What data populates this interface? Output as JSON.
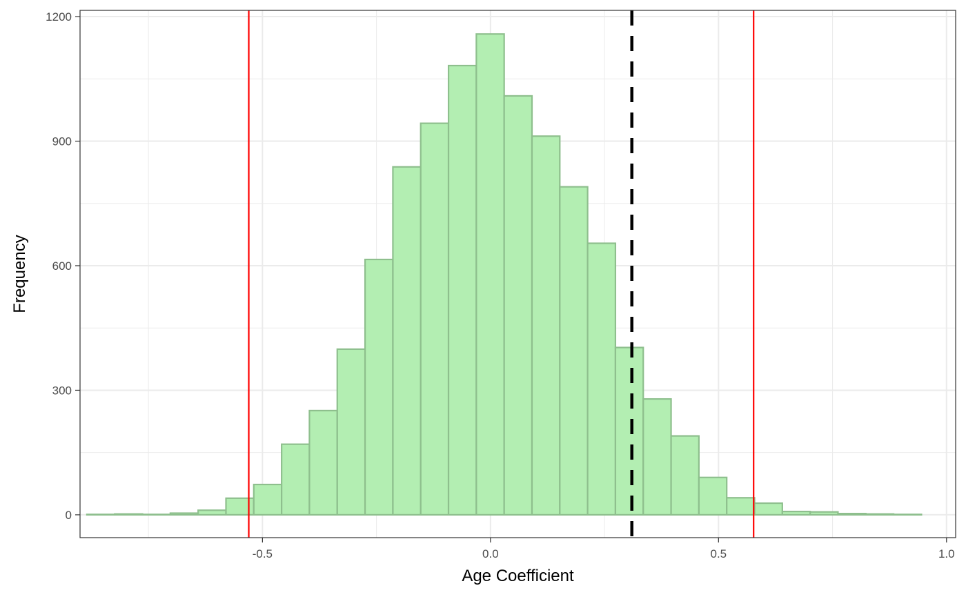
{
  "chart_data": {
    "type": "bar",
    "subtype": "histogram",
    "title": "",
    "xlabel": "Age Coefficient",
    "ylabel": "Frequency",
    "xlim": [
      -0.9,
      1.02
    ],
    "ylim": [
      -55,
      1215
    ],
    "xticks": [
      -0.5,
      0.0,
      0.5,
      1.0
    ],
    "xtick_labels": [
      "-0.5",
      "0.0",
      "0.5",
      "1.0"
    ],
    "yticks": [
      0,
      300,
      600,
      900,
      1200
    ],
    "ytick_labels": [
      "0",
      "300",
      "600",
      "900",
      "1200"
    ],
    "grid": true,
    "bin_width": 0.061,
    "bins": [
      {
        "x0": -0.885,
        "x1": -0.824,
        "count": 1
      },
      {
        "x0": -0.824,
        "x1": -0.763,
        "count": 2
      },
      {
        "x0": -0.763,
        "x1": -0.702,
        "count": 1
      },
      {
        "x0": -0.702,
        "x1": -0.641,
        "count": 4
      },
      {
        "x0": -0.641,
        "x1": -0.58,
        "count": 11
      },
      {
        "x0": -0.58,
        "x1": -0.519,
        "count": 40
      },
      {
        "x0": -0.519,
        "x1": -0.458,
        "count": 73
      },
      {
        "x0": -0.458,
        "x1": -0.397,
        "count": 170
      },
      {
        "x0": -0.397,
        "x1": -0.336,
        "count": 251
      },
      {
        "x0": -0.336,
        "x1": -0.275,
        "count": 399
      },
      {
        "x0": -0.275,
        "x1": -0.214,
        "count": 615
      },
      {
        "x0": -0.214,
        "x1": -0.153,
        "count": 838
      },
      {
        "x0": -0.153,
        "x1": -0.092,
        "count": 943
      },
      {
        "x0": -0.092,
        "x1": -0.031,
        "count": 1082
      },
      {
        "x0": -0.031,
        "x1": 0.03,
        "count": 1158
      },
      {
        "x0": 0.03,
        "x1": 0.091,
        "count": 1009
      },
      {
        "x0": 0.091,
        "x1": 0.152,
        "count": 912
      },
      {
        "x0": 0.152,
        "x1": 0.213,
        "count": 790
      },
      {
        "x0": 0.213,
        "x1": 0.274,
        "count": 654
      },
      {
        "x0": 0.274,
        "x1": 0.335,
        "count": 403
      },
      {
        "x0": 0.335,
        "x1": 0.396,
        "count": 279
      },
      {
        "x0": 0.396,
        "x1": 0.457,
        "count": 190
      },
      {
        "x0": 0.457,
        "x1": 0.518,
        "count": 90
      },
      {
        "x0": 0.518,
        "x1": 0.579,
        "count": 41
      },
      {
        "x0": 0.579,
        "x1": 0.64,
        "count": 28
      },
      {
        "x0": 0.64,
        "x1": 0.701,
        "count": 8
      },
      {
        "x0": 0.701,
        "x1": 0.762,
        "count": 7
      },
      {
        "x0": 0.762,
        "x1": 0.823,
        "count": 3
      },
      {
        "x0": 0.823,
        "x1": 0.884,
        "count": 2
      },
      {
        "x0": 0.884,
        "x1": 0.945,
        "count": 1
      }
    ],
    "reference_lines": [
      {
        "x": -0.53,
        "color": "#ff0000",
        "style": "solid"
      },
      {
        "x": 0.577,
        "color": "#ff0000",
        "style": "solid"
      },
      {
        "x": 0.31,
        "color": "#000000",
        "style": "dashed"
      }
    ],
    "colors": {
      "bar_fill": "#b3eeb2",
      "bar_stroke": "#8ebf8d",
      "grid": "#ebebeb",
      "panel_border": "#333333"
    }
  }
}
